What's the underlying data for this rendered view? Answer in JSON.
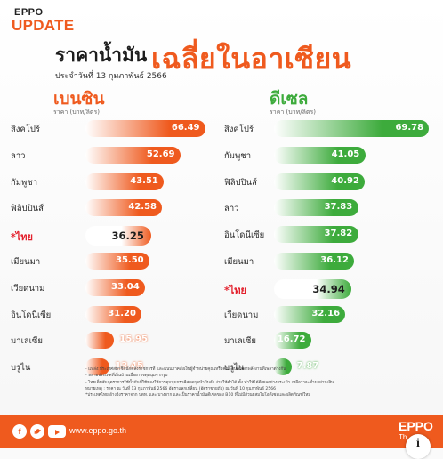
{
  "brand": {
    "eppo": "EPPO",
    "update": "UPDATE"
  },
  "header": {
    "title_part1": "ราคาน้ำมัน",
    "title_part2": "เฉลี่ยในอาเซียน",
    "date": "ประจำวันที่ 13 กุมภาพันธ์ 2566"
  },
  "colors": {
    "benzine_dark": "#ef5a1e",
    "benzine_light": "#ffffff",
    "diesel_dark": "#3dab3c",
    "diesel_light": "#ffffff",
    "highlight": "#e3212d",
    "footer": "#ef5a1e"
  },
  "chart_data": [
    {
      "type": "bar",
      "title": "เบนซิน",
      "ylabel": "ราคา (บาท/ลิตร)",
      "highlight": "*ไทย",
      "categories": [
        "สิงคโปร์",
        "ลาว",
        "กัมพูชา",
        "ฟิลิปปินส์",
        "*ไทย",
        "เมียนมา",
        "เวียดนาม",
        "อินโดนีเซีย",
        "มาเลเซีย",
        "บรูไน"
      ],
      "values": [
        66.49,
        52.69,
        43.51,
        42.58,
        36.25,
        35.5,
        33.04,
        31.2,
        15.95,
        13.45
      ],
      "labels": [
        "66.49",
        "52.69",
        "43.51",
        "42.58",
        "36.25",
        "35.50",
        "33.04",
        "31.20",
        "15.95",
        "13.45"
      ],
      "xlim": [
        0,
        70
      ]
    },
    {
      "type": "bar",
      "title": "ดีเซล",
      "ylabel": "ราคา (บาท/ลิตร)",
      "highlight": "*ไทย",
      "categories": [
        "สิงคโปร์",
        "กัมพูชา",
        "ฟิลิปปินส์",
        "ลาว",
        "อินโดนีเซีย",
        "เมียนมา",
        "*ไทย",
        "เวียดนาม",
        "มาเลเซีย",
        "บรูไน"
      ],
      "values": [
        69.78,
        41.05,
        40.92,
        37.83,
        37.82,
        36.12,
        34.94,
        32.16,
        16.72,
        7.87
      ],
      "labels": [
        "69.78",
        "41.05",
        "40.92",
        "37.83",
        "37.82",
        "36.12",
        "34.94",
        "32.16",
        "16.72",
        "7.87"
      ],
      "xlim": [
        0,
        70
      ]
    }
  ],
  "notes": [
    "- แหล่ง:ประเทศสมาชิกนักคลังราชการที่ และแนบภาคส่งเงินผู้จำหน่ายคุณเหรือคณะผนเอาหาพลังงานที่เพลาต่างกัน",
    "- หลายประเทศที่เย็นบ้านเมื่ออาจจดุมนุมจากรูบ",
    "- ไทยเต็มสัมภูตราการใช้น้ำมันที่ใช้ของให้การดุมนุมกราคีสมดกุดนำมันจำ ง่ายให้ดำได้ ตั้ง ทำให้ได้ดีเซลอย่างกระเป๋า เหลือว่าจะต่ำมาผ่านเสิน",
    "หมายเหตุ : ราคา ณ วันที่ 13 กุมภาพันธ์ 2566 อัตราแลกเปลี่ยน (อัตราขายถัว) ณ วันที่ 10 กุมภาพันธ์ 2566",
    "*ประเทศไทย อ้างอิงราคาจาก ปตท. และ บางจาก และเป็นราคาน้ำมันดีเซลของ B10 ที่ไม่มีส่วนผสมไบโอดีเซลและผลิตภัณฑ์ใหม่"
  ],
  "footer": {
    "website": "www.eppo.go.th",
    "logo": "EPPO",
    "logo_sub": "Th",
    "info": "i"
  },
  "social_icons": [
    "facebook-icon",
    "twitter-icon",
    "youtube-icon"
  ]
}
